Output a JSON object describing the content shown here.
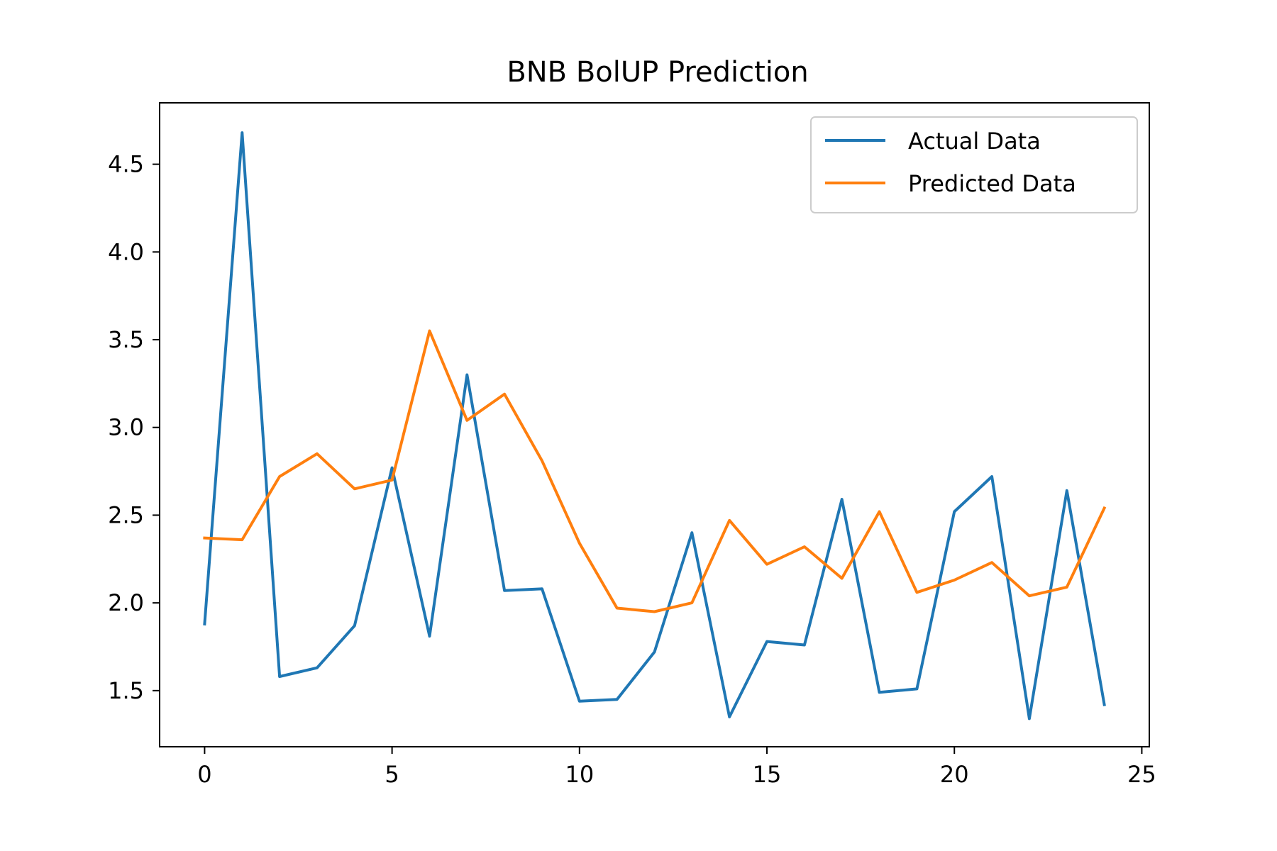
{
  "chart_data": {
    "type": "line",
    "title": "BNB BolUP Prediction",
    "xlabel": "",
    "ylabel": "",
    "xlim": [
      -1.2,
      25.2
    ],
    "ylim": [
      1.18,
      4.85
    ],
    "xticks": [
      0,
      5,
      10,
      15,
      20,
      25
    ],
    "xtick_labels": [
      "0",
      "5",
      "10",
      "15",
      "20",
      "25"
    ],
    "yticks": [
      1.5,
      2.0,
      2.5,
      3.0,
      3.5,
      4.0,
      4.5
    ],
    "ytick_labels": [
      "1.5",
      "2.0",
      "2.5",
      "3.0",
      "3.5",
      "4.0",
      "4.5"
    ],
    "grid": false,
    "legend_position": "top-right",
    "x": [
      0,
      1,
      2,
      3,
      4,
      5,
      6,
      7,
      8,
      9,
      10,
      11,
      12,
      13,
      14,
      15,
      16,
      17,
      18,
      19,
      20,
      21,
      22,
      23,
      24
    ],
    "series": [
      {
        "name": "Actual Data",
        "color": "#1f77b4",
        "values": [
          1.88,
          4.68,
          1.58,
          1.63,
          1.87,
          2.77,
          1.81,
          3.3,
          2.07,
          2.08,
          1.44,
          1.45,
          1.72,
          2.4,
          1.35,
          1.78,
          1.76,
          2.59,
          1.49,
          1.51,
          2.52,
          2.72,
          1.34,
          2.64,
          1.42
        ]
      },
      {
        "name": "Predicted Data",
        "color": "#ff7f0e",
        "values": [
          2.37,
          2.36,
          2.72,
          2.85,
          2.65,
          2.7,
          3.55,
          3.04,
          3.19,
          2.81,
          2.34,
          1.97,
          1.95,
          2.0,
          2.47,
          2.22,
          2.32,
          2.14,
          2.52,
          2.06,
          2.13,
          2.23,
          2.04,
          2.09,
          2.54
        ]
      }
    ]
  }
}
